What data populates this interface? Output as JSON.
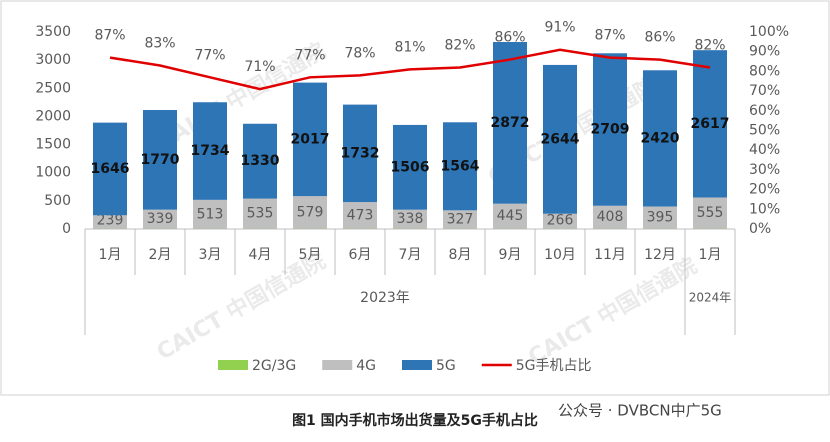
{
  "chart_data": {
    "type": "bar",
    "title": "图1  国内手机市场出货量及5G手机占比",
    "watermark": "CAICT 中国信通院",
    "source": "公众号 · DVBCN中广5G",
    "categories": [
      "1月",
      "2月",
      "3月",
      "4月",
      "5月",
      "6月",
      "7月",
      "8月",
      "9月",
      "10月",
      "11月",
      "12月",
      "1月"
    ],
    "groups": [
      "2023年",
      "2024年"
    ],
    "stacked": true,
    "series": [
      {
        "name": "2G/3G",
        "color": "#92d050",
        "values": [
          5,
          5,
          5,
          5,
          5,
          5,
          5,
          5,
          5,
          5,
          5,
          5,
          5
        ]
      },
      {
        "name": "4G",
        "color": "#bfbfbf",
        "values": [
          239,
          339,
          513,
          535,
          579,
          473,
          338,
          327,
          445,
          266,
          408,
          395,
          555
        ]
      },
      {
        "name": "5G",
        "color": "#2e75b6",
        "values": [
          1646,
          1770,
          1734,
          1330,
          2017,
          1732,
          1506,
          1564,
          2872,
          2644,
          2709,
          2420,
          2617
        ]
      },
      {
        "name": "5G手机占比",
        "color": "#e00000",
        "type": "line",
        "axis": "y2",
        "values": [
          87,
          83,
          77,
          71,
          77,
          78,
          81,
          82,
          86,
          91,
          87,
          86,
          82
        ],
        "value_labels": [
          "87%",
          "83%",
          "77%",
          "71%",
          "77%",
          "78%",
          "81%",
          "82%",
          "86%",
          "91%",
          "87%",
          "86%",
          "82%"
        ]
      }
    ],
    "ylim": [
      0,
      3500
    ],
    "yticks": [
      0,
      500,
      1000,
      1500,
      2000,
      2500,
      3000,
      3500
    ],
    "y2lim": [
      0,
      100
    ],
    "y2ticks": [
      {
        "value": 0,
        "label": "0%"
      },
      {
        "value": 10,
        "label": "10%"
      },
      {
        "value": 20,
        "label": "20%"
      },
      {
        "value": 30,
        "label": "30%"
      },
      {
        "value": 40,
        "label": "40%"
      },
      {
        "value": 50,
        "label": "50%"
      },
      {
        "value": 60,
        "label": "60%"
      },
      {
        "value": 70,
        "label": "70%"
      },
      {
        "value": 80,
        "label": "80%"
      },
      {
        "value": 90,
        "label": "90%"
      },
      {
        "value": 100,
        "label": "100%"
      }
    ]
  }
}
